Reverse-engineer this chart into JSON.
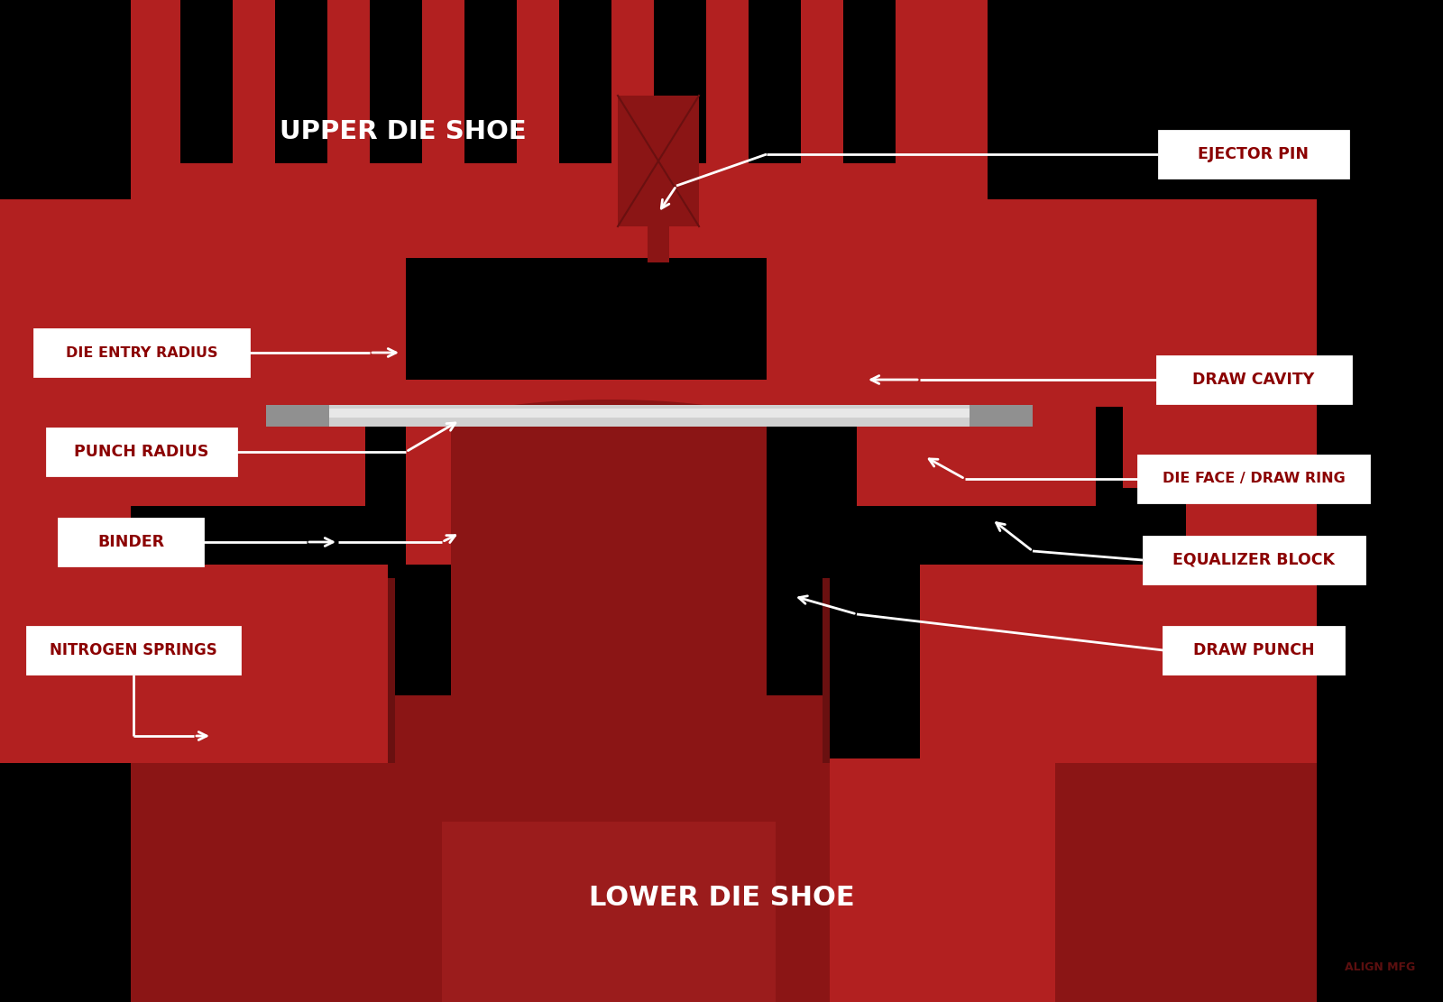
{
  "bg_color": "#000000",
  "red_main": "#B22020",
  "red_dark": "#8B1515",
  "red_darker": "#6A1010",
  "red_mid": "#9B1C1C",
  "ejector_color": "#8B1515",
  "sheet_light": "#D0D0D0",
  "sheet_white": "#E8E8E8",
  "sheet_dark": "#909090",
  "label_bg": "#FFFFFF",
  "label_text": "#8B0000",
  "label_border": "#8B0000",
  "white": "#FFFFFF",
  "labels": {
    "upper_die_shoe": "UPPER DIE SHOE",
    "ejector_pin": "EJECTOR PIN",
    "die_entry_radius": "DIE ENTRY RADIUS",
    "draw_cavity": "DRAW CAVITY",
    "punch_radius": "PUNCH RADIUS",
    "die_face": "DIE FACE / DRAW RING",
    "binder": "BINDER",
    "equalizer_block": "EQUALIZER BLOCK",
    "nitrogen_springs": "NITROGEN SPRINGS",
    "draw_punch": "DRAW PUNCH",
    "lower_die_shoe": "LOWER DIE SHOE"
  },
  "align_text": "ALIGN MFG"
}
